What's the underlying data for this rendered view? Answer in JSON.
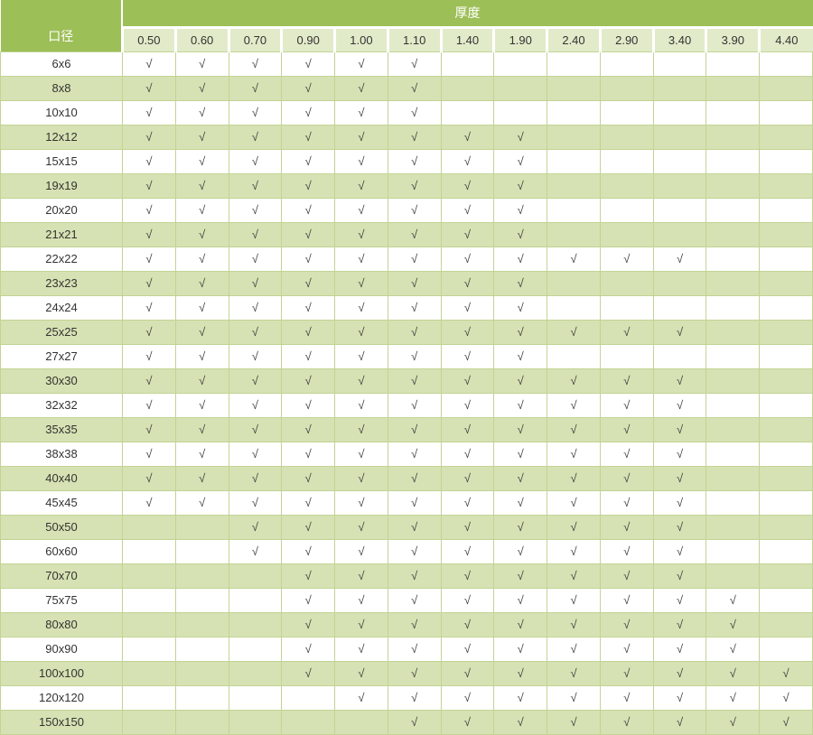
{
  "colors": {
    "header_green": "#9dbf58",
    "subheader_bg": "#e2ebc9",
    "stripe_bg": "#d6e2b3",
    "row_white": "#ffffff",
    "grid_border": "#c2d494",
    "header_text": "#ffffff",
    "cell_text": "#3a3a3a"
  },
  "chart_data": {
    "type": "table",
    "top_header": "厚度",
    "corner_label": "口径",
    "check_symbol": "√",
    "columns": [
      "0.50",
      "0.60",
      "0.70",
      "0.90",
      "1.00",
      "1.10",
      "1.40",
      "1.90",
      "2.40",
      "2.90",
      "3.40",
      "3.90",
      "4.40"
    ],
    "rows": [
      {
        "label": "6x6",
        "checks": [
          1,
          1,
          1,
          1,
          1,
          1,
          0,
          0,
          0,
          0,
          0,
          0,
          0
        ]
      },
      {
        "label": "8x8",
        "checks": [
          1,
          1,
          1,
          1,
          1,
          1,
          0,
          0,
          0,
          0,
          0,
          0,
          0
        ]
      },
      {
        "label": "10x10",
        "checks": [
          1,
          1,
          1,
          1,
          1,
          1,
          0,
          0,
          0,
          0,
          0,
          0,
          0
        ]
      },
      {
        "label": "12x12",
        "checks": [
          1,
          1,
          1,
          1,
          1,
          1,
          1,
          1,
          0,
          0,
          0,
          0,
          0
        ]
      },
      {
        "label": "15x15",
        "checks": [
          1,
          1,
          1,
          1,
          1,
          1,
          1,
          1,
          0,
          0,
          0,
          0,
          0
        ]
      },
      {
        "label": "19x19",
        "checks": [
          1,
          1,
          1,
          1,
          1,
          1,
          1,
          1,
          0,
          0,
          0,
          0,
          0
        ]
      },
      {
        "label": "20x20",
        "checks": [
          1,
          1,
          1,
          1,
          1,
          1,
          1,
          1,
          0,
          0,
          0,
          0,
          0
        ]
      },
      {
        "label": "21x21",
        "checks": [
          1,
          1,
          1,
          1,
          1,
          1,
          1,
          1,
          0,
          0,
          0,
          0,
          0
        ]
      },
      {
        "label": "22x22",
        "checks": [
          1,
          1,
          1,
          1,
          1,
          1,
          1,
          1,
          1,
          1,
          1,
          0,
          0
        ]
      },
      {
        "label": "23x23",
        "checks": [
          1,
          1,
          1,
          1,
          1,
          1,
          1,
          1,
          0,
          0,
          0,
          0,
          0
        ]
      },
      {
        "label": "24x24",
        "checks": [
          1,
          1,
          1,
          1,
          1,
          1,
          1,
          1,
          0,
          0,
          0,
          0,
          0
        ]
      },
      {
        "label": "25x25",
        "checks": [
          1,
          1,
          1,
          1,
          1,
          1,
          1,
          1,
          1,
          1,
          1,
          0,
          0
        ]
      },
      {
        "label": "27x27",
        "checks": [
          1,
          1,
          1,
          1,
          1,
          1,
          1,
          1,
          0,
          0,
          0,
          0,
          0
        ]
      },
      {
        "label": "30x30",
        "checks": [
          1,
          1,
          1,
          1,
          1,
          1,
          1,
          1,
          1,
          1,
          1,
          0,
          0
        ]
      },
      {
        "label": "32x32",
        "checks": [
          1,
          1,
          1,
          1,
          1,
          1,
          1,
          1,
          1,
          1,
          1,
          0,
          0
        ]
      },
      {
        "label": "35x35",
        "checks": [
          1,
          1,
          1,
          1,
          1,
          1,
          1,
          1,
          1,
          1,
          1,
          0,
          0
        ]
      },
      {
        "label": "38x38",
        "checks": [
          1,
          1,
          1,
          1,
          1,
          1,
          1,
          1,
          1,
          1,
          1,
          0,
          0
        ]
      },
      {
        "label": "40x40",
        "checks": [
          1,
          1,
          1,
          1,
          1,
          1,
          1,
          1,
          1,
          1,
          1,
          0,
          0
        ]
      },
      {
        "label": "45x45",
        "checks": [
          1,
          1,
          1,
          1,
          1,
          1,
          1,
          1,
          1,
          1,
          1,
          0,
          0
        ]
      },
      {
        "label": "50x50",
        "checks": [
          0,
          0,
          1,
          1,
          1,
          1,
          1,
          1,
          1,
          1,
          1,
          0,
          0
        ]
      },
      {
        "label": "60x60",
        "checks": [
          0,
          0,
          1,
          1,
          1,
          1,
          1,
          1,
          1,
          1,
          1,
          0,
          0
        ]
      },
      {
        "label": "70x70",
        "checks": [
          0,
          0,
          0,
          1,
          1,
          1,
          1,
          1,
          1,
          1,
          1,
          0,
          0
        ]
      },
      {
        "label": "75x75",
        "checks": [
          0,
          0,
          0,
          1,
          1,
          1,
          1,
          1,
          1,
          1,
          1,
          1,
          0
        ]
      },
      {
        "label": "80x80",
        "checks": [
          0,
          0,
          0,
          1,
          1,
          1,
          1,
          1,
          1,
          1,
          1,
          1,
          0
        ]
      },
      {
        "label": "90x90",
        "checks": [
          0,
          0,
          0,
          1,
          1,
          1,
          1,
          1,
          1,
          1,
          1,
          1,
          0
        ]
      },
      {
        "label": "100x100",
        "checks": [
          0,
          0,
          0,
          1,
          1,
          1,
          1,
          1,
          1,
          1,
          1,
          1,
          1
        ]
      },
      {
        "label": "120x120",
        "checks": [
          0,
          0,
          0,
          0,
          1,
          1,
          1,
          1,
          1,
          1,
          1,
          1,
          1
        ]
      },
      {
        "label": "150x150",
        "checks": [
          0,
          0,
          0,
          0,
          0,
          1,
          1,
          1,
          1,
          1,
          1,
          1,
          1
        ]
      }
    ]
  }
}
